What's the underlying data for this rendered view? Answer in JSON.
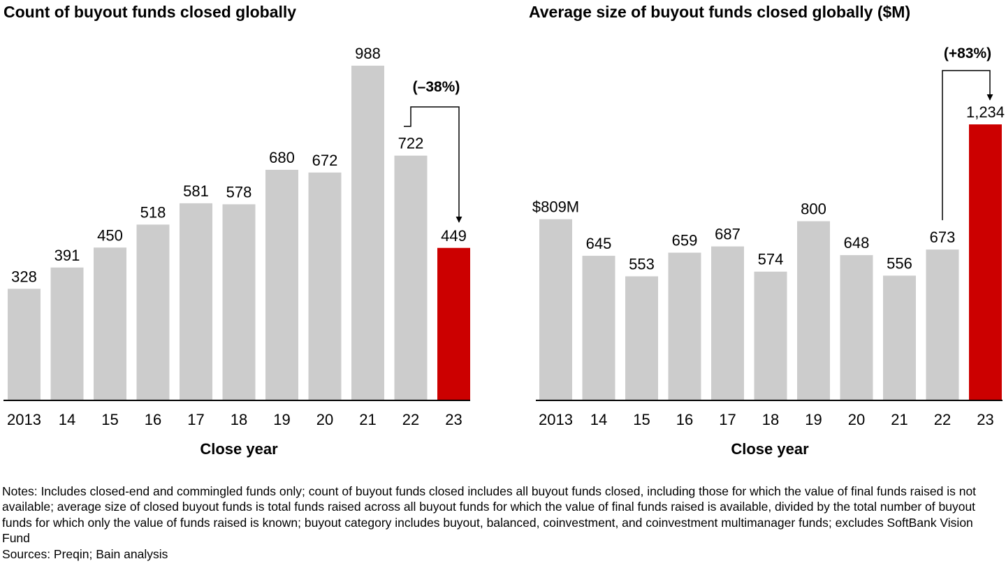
{
  "chart_data": [
    {
      "type": "bar",
      "title": "Count of buyout funds closed globally",
      "xlabel": "Close year",
      "ylabel": "",
      "categories": [
        "2013",
        "14",
        "15",
        "16",
        "17",
        "18",
        "19",
        "20",
        "21",
        "22",
        "23"
      ],
      "values": [
        328,
        391,
        450,
        518,
        581,
        578,
        680,
        672,
        988,
        722,
        449
      ],
      "value_labels": [
        "328",
        "391",
        "450",
        "518",
        "581",
        "578",
        "680",
        "672",
        "988",
        "722",
        "449"
      ],
      "ylim": [
        0,
        1000
      ],
      "grid": false,
      "colors": {
        "default": "#cccccc",
        "highlight": "#cc0000"
      },
      "highlight_index": 10,
      "annotation": {
        "text": "(–38%)",
        "from_index": 9,
        "to_index": 10
      }
    },
    {
      "type": "bar",
      "title": "Average size of buyout funds closed globally ($M)",
      "xlabel": "Close year",
      "ylabel": "",
      "categories": [
        "2013",
        "14",
        "15",
        "16",
        "17",
        "18",
        "19",
        "20",
        "21",
        "22",
        "23"
      ],
      "values": [
        809,
        645,
        553,
        659,
        687,
        574,
        800,
        648,
        556,
        673,
        1234
      ],
      "value_labels": [
        "$809M",
        "645",
        "553",
        "659",
        "687",
        "574",
        "800",
        "648",
        "556",
        "673",
        "1,234"
      ],
      "ylim": [
        0,
        1300
      ],
      "grid": false,
      "colors": {
        "default": "#cccccc",
        "highlight": "#cc0000"
      },
      "highlight_index": 10,
      "annotation": {
        "text": "(+83%)",
        "from_index": 9,
        "to_index": 10
      }
    }
  ],
  "notes": {
    "text": "Notes: Includes closed-end and commingled funds only; count of buyout funds closed includes all buyout funds closed, including those for which the value of final funds raised is not available; average size of closed buyout funds is total funds raised across all buyout funds for which the value of final funds raised is available, divided by the total number of buyout funds for which only the value of funds raised is known; buyout category includes buyout, balanced, coinvestment, and coinvestment multimanager funds; excludes SoftBank Vision Fund",
    "sources": "Sources: Preqin; Bain analysis"
  }
}
